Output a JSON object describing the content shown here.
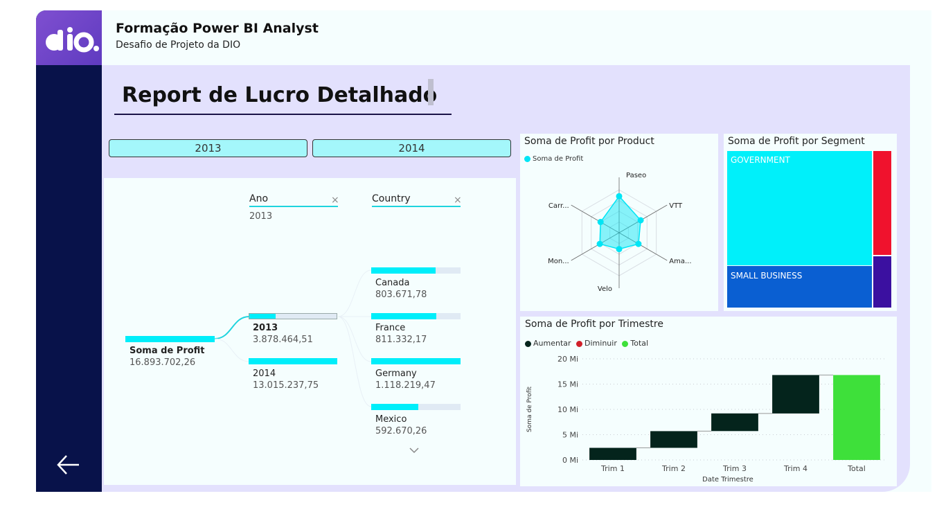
{
  "header": {
    "title": "Formação Power BI Analyst",
    "subtitle": "Desafio de Projeto da DIO",
    "logo_icon": "dio-logo-icon",
    "back_icon": "arrow-left-icon"
  },
  "report": {
    "title": "Report de Lucro Detalhado"
  },
  "year_buttons": [
    "2013",
    "2014"
  ],
  "decomposition": {
    "root": {
      "label": "Soma de Profit",
      "value": "16.893.702,26"
    },
    "levels": [
      {
        "header": "Ano",
        "selected": "2013"
      },
      {
        "header": "Country",
        "selected": ""
      }
    ],
    "years": [
      {
        "label": "2013",
        "value": "3.878.464,51",
        "fraction": 0.298
      },
      {
        "label": "2014",
        "value": "13.015.237,75",
        "fraction": 1.0
      }
    ],
    "countries": [
      {
        "label": "Canada",
        "value": "803.671,78",
        "fraction": 0.72
      },
      {
        "label": "France",
        "value": "811.332,17",
        "fraction": 0.73
      },
      {
        "label": "Germany",
        "value": "1.118.219,47",
        "fraction": 1.0
      },
      {
        "label": "Mexico",
        "value": "592.670,26",
        "fraction": 0.53
      }
    ],
    "colors": {
      "bar": "#00eefa",
      "bar_bg": "#e0eaf4"
    }
  },
  "charts": {
    "radar": {
      "title": "Soma de Profit por Product",
      "legend": "Soma de Profit"
    },
    "treemap": {
      "title": "Soma de Profit por Segment",
      "tiles": [
        "GOVERNMENT",
        "SMALL BUSINESS"
      ]
    },
    "waterfall": {
      "title": "Soma de Profit por Trimestre",
      "legend": [
        "Aumentar",
        "Diminuir",
        "Total"
      ],
      "ylabel": "Soma de Profit",
      "xlabel": "Date Trimestre"
    }
  },
  "chart_data": [
    {
      "type": "radar",
      "title": "Soma de Profit por Product",
      "categories": [
        "Paseo",
        "VTT",
        "Ama...",
        "Velo",
        "Mon...",
        "Carr..."
      ],
      "series": [
        {
          "name": "Soma de Profit",
          "values": [
            0.85,
            0.58,
            0.52,
            0.38,
            0.52,
            0.5
          ]
        }
      ],
      "color": "#00e5f5",
      "legend": "top-left"
    },
    {
      "type": "treemap",
      "title": "Soma de Profit por Segment",
      "categories": [
        "GOVERNMENT",
        "SMALL BUSINESS",
        "",
        ""
      ],
      "values": [
        55,
        20,
        10,
        4
      ],
      "colors": [
        "#00f0fa",
        "#0a5fd2",
        "#f0122d",
        "#3b10a0"
      ]
    },
    {
      "type": "waterfall",
      "title": "Soma de Profit por Trimestre",
      "categories": [
        "Trim 1",
        "Trim 2",
        "Trim 3",
        "Trim 4",
        "Total"
      ],
      "values": [
        2.4,
        3.3,
        3.5,
        7.6,
        16.8
      ],
      "is_total": [
        false,
        false,
        false,
        false,
        true
      ],
      "yticks": [
        "0 Mi",
        "5 Mi",
        "10 Mi",
        "15 Mi",
        "20 Mi"
      ],
      "ylim": [
        0,
        20
      ],
      "ylabel": "Soma de Profit",
      "xlabel": "Date Trimestre",
      "legend": [
        "Aumentar",
        "Diminuir",
        "Total"
      ],
      "colors": {
        "increase": "#04241c",
        "decrease": "#d0202a",
        "total": "#3ee03a"
      }
    }
  ]
}
